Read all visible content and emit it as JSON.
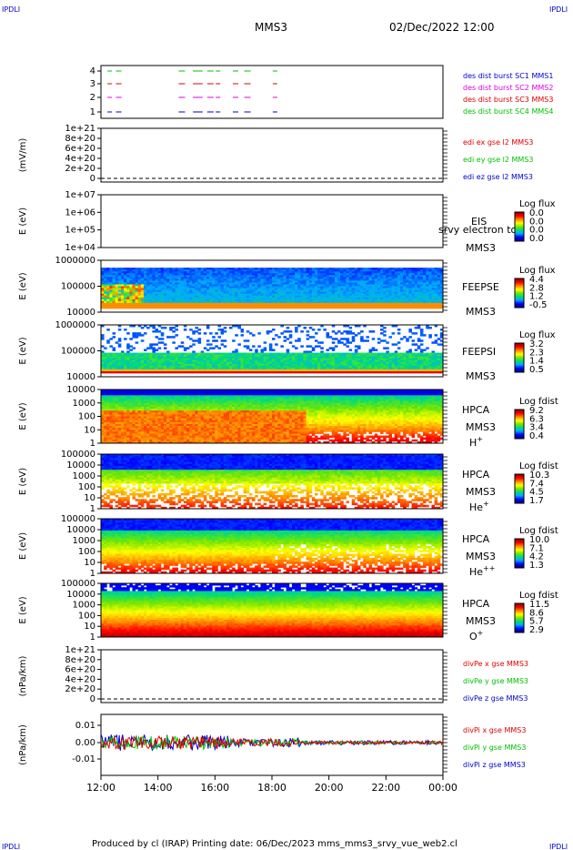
{
  "header": {
    "corner_left": "IPDLI",
    "corner_right": "IPDLI",
    "title": "MMS3",
    "date": "02/Dec/2022 12:00"
  },
  "footer": {
    "text": "Produced by cl (IRAP)   Printing date: 06/Dec/2023   mms_mms3_srvy_vue_web2.cl",
    "corner_left": "IPDLI",
    "corner_right": "IPDLI"
  },
  "x_axis": {
    "ticks": [
      "12:00",
      "14:00",
      "16:00",
      "18:00",
      "20:00",
      "22:00",
      "00:00"
    ]
  },
  "colors": {
    "red": "#dd0000",
    "green": "#00c000",
    "blue": "#0000cc",
    "magenta": "#dd00dd"
  },
  "chart_data": [
    {
      "type": "scatter",
      "id": "burst",
      "ylabel": "",
      "yticks": [
        "4",
        "3",
        "2",
        "1"
      ],
      "legend": [
        {
          "label": "des dist burst SC1 MMS1",
          "color": "#0000cc"
        },
        {
          "label": "des dist burst SC2 MMS2",
          "color": "#dd00dd"
        },
        {
          "label": "des dist burst SC3 MMS3",
          "color": "#dd0000"
        },
        {
          "label": "des dist burst SC4 MMS4",
          "color": "#00c000"
        }
      ],
      "burst_times_hours": [
        0.1,
        0.4,
        2.6,
        3.1,
        3.25,
        3.6,
        3.9,
        4.5,
        4.9,
        5.9
      ],
      "ylim": [
        0.5,
        4.5
      ]
    },
    {
      "type": "line",
      "id": "edi",
      "ylabel": "(mV/m)",
      "yticks": [
        "1e+21",
        "8e+20",
        "6e+20",
        "4e+20",
        "2e+20",
        "0"
      ],
      "legend": [
        {
          "label": "edi ex gse l2 MMS3",
          "color": "#dd0000"
        },
        {
          "label": "edi ey gse l2 MMS3",
          "color": "#00c000"
        },
        {
          "label": "edi ez gse l2 MMS3",
          "color": "#0000cc"
        }
      ]
    },
    {
      "type": "heatmap",
      "id": "eis",
      "ylabel": "E (eV)",
      "yticks": [
        "1e+07",
        "1e+06",
        "1e+05",
        "1e+04"
      ],
      "labels": [
        "EIS",
        "MMS3"
      ],
      "overlay_text": "srvy electron to",
      "colorbar_title": "Log flux",
      "colorbar_ticks": [
        "0.0",
        "0.0",
        "0.0",
        "0.0"
      ]
    },
    {
      "type": "heatmap",
      "id": "feepse",
      "ylabel": "E (eV)",
      "yticks": [
        "1000000",
        "100000",
        "10000"
      ],
      "labels": [
        "FEEPSE",
        "MMS3"
      ],
      "colorbar_title": "Log flux",
      "colorbar_ticks": [
        "4.4",
        "2.8",
        "1.2",
        "-0.5"
      ]
    },
    {
      "type": "heatmap",
      "id": "feepsi",
      "ylabel": "E (eV)",
      "yticks": [
        "1000000",
        "100000",
        "10000"
      ],
      "labels": [
        "FEEPSI",
        "MMS3"
      ],
      "colorbar_title": "Log flux",
      "colorbar_ticks": [
        "3.2",
        "2.3",
        "1.4",
        "0.5"
      ]
    },
    {
      "type": "heatmap",
      "id": "hpca_h",
      "ylabel": "E (eV)",
      "yticks": [
        "10000",
        "1000",
        "100",
        "10",
        "1"
      ],
      "labels": [
        "HPCA",
        "MMS3"
      ],
      "species": "H",
      "species_sup": "+",
      "colorbar_title": "Log fdist",
      "colorbar_ticks": [
        "9.2",
        "6.3",
        "3.4",
        "0.4"
      ]
    },
    {
      "type": "heatmap",
      "id": "hpca_he",
      "ylabel": "E (eV)",
      "yticks": [
        "100000",
        "10000",
        "1000",
        "100",
        "10",
        "1"
      ],
      "labels": [
        "HPCA",
        "MMS3"
      ],
      "species": "He",
      "species_sup": "+",
      "colorbar_title": "Log fdist",
      "colorbar_ticks": [
        "10.3",
        "7.4",
        "4.5",
        "1.7"
      ]
    },
    {
      "type": "heatmap",
      "id": "hpca_hepp",
      "ylabel": "E (eV)",
      "yticks": [
        "100000",
        "10000",
        "1000",
        "100",
        "10",
        "1"
      ],
      "labels": [
        "HPCA",
        "MMS3"
      ],
      "species": "He",
      "species_sup": "++",
      "colorbar_title": "Log fdist",
      "colorbar_ticks": [
        "10.0",
        "7.1",
        "4.2",
        "1.3"
      ]
    },
    {
      "type": "heatmap",
      "id": "hpca_o",
      "ylabel": "E (eV)",
      "yticks": [
        "100000",
        "10000",
        "1000",
        "100",
        "10",
        "1"
      ],
      "labels": [
        "HPCA",
        "MMS3"
      ],
      "species": "O",
      "species_sup": "+",
      "colorbar_title": "Log fdist",
      "colorbar_ticks": [
        "11.5",
        "8.6",
        "5.7",
        "2.9"
      ]
    },
    {
      "type": "line",
      "id": "divpe",
      "ylabel": "(nPa/km)",
      "yticks": [
        "1e+21",
        "8e+20",
        "6e+20",
        "4e+20",
        "2e+20",
        "0"
      ],
      "legend": [
        {
          "label": "divPe x gse MMS3",
          "color": "#dd0000"
        },
        {
          "label": "divPe y gse MMS3",
          "color": "#00c000"
        },
        {
          "label": "divPe z gse MMS3",
          "color": "#0000cc"
        }
      ]
    },
    {
      "type": "line",
      "id": "divpi",
      "ylabel": "(nPa/km)",
      "yticks": [
        "0.01",
        "0.00",
        "-0.01"
      ],
      "ylim": [
        -0.015,
        0.015
      ],
      "legend": [
        {
          "label": "divPi x gse MMS3",
          "color": "#dd0000"
        },
        {
          "label": "divPi y gse MMS3",
          "color": "#00c000"
        },
        {
          "label": "divPi z gse MMS3",
          "color": "#0000cc"
        }
      ]
    }
  ]
}
